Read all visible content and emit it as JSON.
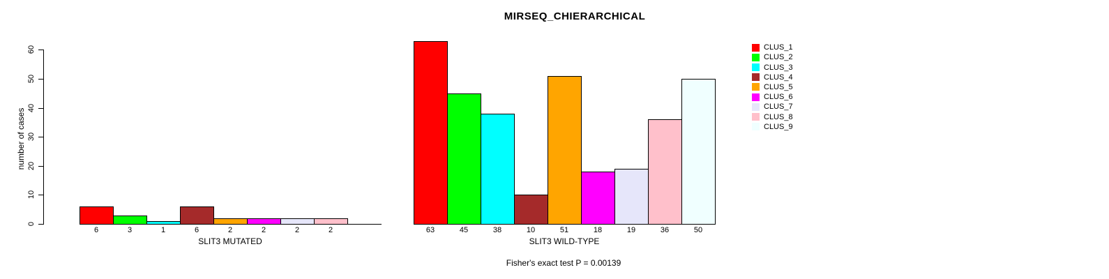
{
  "chart_data": {
    "type": "bar",
    "title": "MIRSEQ_CHIERARCHICAL",
    "ylabel": "number of cases",
    "xlabel": "",
    "yticks": [
      0,
      10,
      20,
      30,
      40,
      50,
      60
    ],
    "ylim": [
      0,
      65
    ],
    "grid": false,
    "legend_position": "right",
    "annotation": "Fisher's exact test P = 0.00139",
    "clusters": [
      "CLUS_1",
      "CLUS_2",
      "CLUS_3",
      "CLUS_4",
      "CLUS_5",
      "CLUS_6",
      "CLUS_7",
      "CLUS_8",
      "CLUS_9"
    ],
    "colors": [
      "#ff0000",
      "#00ff00",
      "#00ffff",
      "#a52a2a",
      "#ffa500",
      "#ff00ff",
      "#e6e6fa",
      "#ffc0cb",
      "#f0ffff"
    ],
    "groups": [
      {
        "xlabel": "SLIT3 MUTATED",
        "values": [
          6,
          3,
          1,
          6,
          2,
          2,
          2,
          2,
          0
        ],
        "bar_labels": [
          "6",
          "3",
          "1",
          "6",
          "2",
          "2",
          "2",
          "2",
          ""
        ]
      },
      {
        "xlabel": "SLIT3 WILD-TYPE",
        "values": [
          63,
          45,
          38,
          10,
          51,
          18,
          19,
          36,
          50
        ],
        "bar_labels": [
          "63",
          "45",
          "38",
          "10",
          "51",
          "18",
          "19",
          "36",
          "50"
        ]
      }
    ]
  }
}
